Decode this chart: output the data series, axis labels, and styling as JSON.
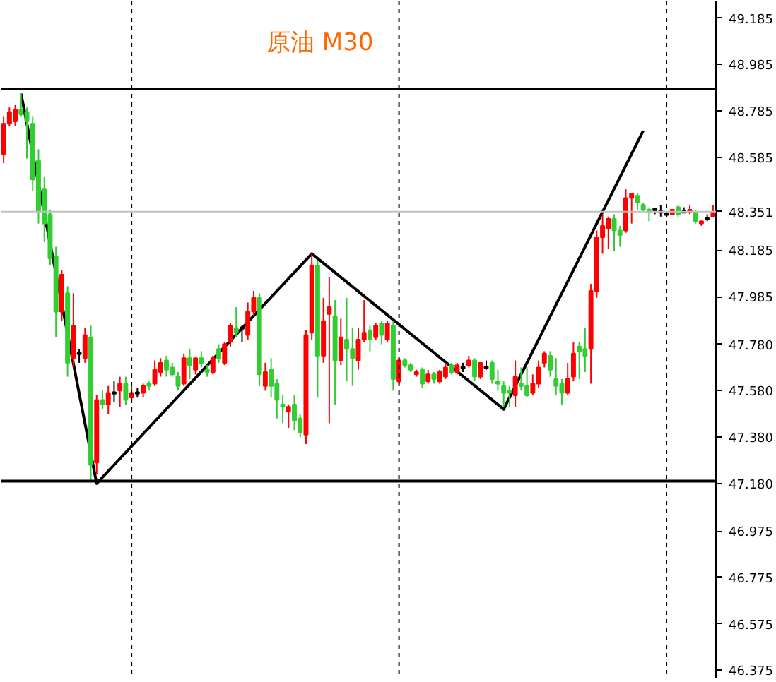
{
  "chart_data": {
    "type": "candlestick",
    "title": "原油 M30",
    "categories": [
      null,
      null,
      null,
      null,
      null,
      null,
      null,
      null,
      null,
      null,
      null,
      null,
      null,
      null,
      null,
      null,
      null,
      null,
      null,
      null,
      null,
      null,
      null,
      null,
      null,
      null,
      null,
      null,
      null,
      null,
      null,
      null,
      null,
      null,
      null,
      null,
      null,
      null,
      null,
      null,
      null,
      null,
      null,
      null,
      null,
      null,
      null,
      null,
      null,
      null,
      null,
      null,
      null,
      null,
      null,
      null,
      null,
      null,
      null,
      null,
      null,
      null,
      null,
      null,
      null,
      null,
      null,
      null,
      null,
      null,
      null,
      null,
      null,
      null,
      null,
      null,
      null,
      null,
      null,
      null,
      null,
      null,
      null,
      null,
      null,
      null,
      null,
      null,
      null,
      null,
      null,
      null,
      null,
      null,
      null,
      null,
      null,
      null,
      null,
      null,
      null,
      null,
      null,
      null,
      null,
      null,
      null,
      null,
      null,
      null,
      null,
      null,
      null,
      null,
      null,
      null,
      null,
      null,
      null,
      null,
      null,
      null,
      null
    ],
    "ohlc": [
      [
        48.6,
        48.76,
        48.56,
        48.73
      ],
      [
        48.73,
        48.8,
        48.72,
        48.78
      ],
      [
        48.74,
        48.81,
        48.72,
        48.79
      ],
      [
        48.79,
        48.86,
        48.76,
        48.77
      ],
      [
        48.78,
        48.8,
        48.58,
        48.74
      ],
      [
        48.73,
        48.76,
        48.44,
        48.49
      ],
      [
        48.57,
        48.62,
        48.3,
        48.35
      ],
      [
        48.45,
        48.5,
        48.22,
        48.3
      ],
      [
        48.34,
        48.36,
        48.12,
        48.15
      ],
      [
        48.16,
        48.2,
        47.81,
        47.92
      ],
      [
        47.92,
        48.1,
        47.88,
        48.08
      ],
      [
        48.0,
        48.03,
        47.64,
        47.7
      ],
      [
        47.72,
        48.0,
        47.68,
        47.86
      ],
      [
        47.74,
        47.76,
        47.7,
        47.74
      ],
      [
        47.72,
        47.85,
        47.7,
        47.82
      ],
      [
        47.81,
        47.86,
        47.19,
        47.26
      ],
      [
        47.27,
        47.56,
        47.22,
        47.54
      ],
      [
        47.54,
        47.58,
        47.5,
        47.52
      ],
      [
        47.52,
        47.6,
        47.48,
        47.57
      ],
      [
        47.57,
        47.62,
        47.53,
        47.57
      ],
      [
        47.58,
        47.64,
        47.51,
        47.61
      ],
      [
        47.61,
        47.64,
        47.52,
        47.54
      ],
      [
        47.55,
        47.6,
        47.54,
        47.57
      ],
      [
        47.57,
        47.59,
        47.55,
        47.57
      ],
      [
        47.57,
        47.61,
        47.55,
        47.6
      ],
      [
        47.61,
        47.62,
        47.58,
        47.6
      ],
      [
        47.61,
        47.71,
        47.6,
        47.67
      ],
      [
        47.66,
        47.72,
        47.64,
        47.7
      ],
      [
        47.71,
        47.73,
        47.64,
        47.67
      ],
      [
        47.68,
        47.7,
        47.64,
        47.65
      ],
      [
        47.64,
        47.66,
        47.58,
        47.6
      ],
      [
        47.61,
        47.74,
        47.6,
        47.72
      ],
      [
        47.72,
        47.76,
        47.63,
        47.69
      ],
      [
        47.67,
        47.72,
        47.65,
        47.72
      ],
      [
        47.72,
        47.75,
        47.68,
        47.7
      ],
      [
        47.67,
        47.69,
        47.64,
        47.66
      ],
      [
        47.66,
        47.73,
        47.65,
        47.72
      ],
      [
        47.76,
        47.78,
        47.7,
        47.72
      ],
      [
        47.7,
        47.79,
        47.69,
        47.78
      ],
      [
        47.79,
        47.87,
        47.77,
        47.86
      ],
      [
        47.85,
        47.94,
        47.81,
        47.83
      ],
      [
        47.85,
        47.86,
        47.79,
        47.85
      ],
      [
        47.82,
        47.96,
        47.8,
        47.92
      ],
      [
        47.92,
        48.01,
        47.9,
        47.98
      ],
      [
        47.98,
        48.0,
        47.6,
        47.65
      ],
      [
        47.6,
        47.7,
        47.58,
        47.66
      ],
      [
        47.67,
        47.72,
        47.55,
        47.6
      ],
      [
        47.61,
        47.63,
        47.46,
        47.54
      ],
      [
        47.52,
        47.56,
        47.44,
        47.51
      ],
      [
        47.49,
        47.52,
        47.42,
        47.51
      ],
      [
        47.52,
        47.56,
        47.41,
        47.45
      ],
      [
        47.46,
        47.48,
        47.38,
        47.4
      ],
      [
        47.39,
        47.84,
        47.35,
        47.82
      ],
      [
        47.83,
        48.17,
        47.8,
        48.12
      ],
      [
        48.12,
        48.14,
        47.55,
        47.73
      ],
      [
        47.73,
        47.98,
        47.7,
        47.88
      ],
      [
        47.91,
        48.07,
        47.44,
        47.94
      ],
      [
        47.9,
        47.97,
        47.52,
        47.71
      ],
      [
        47.71,
        47.89,
        47.69,
        47.81
      ],
      [
        47.8,
        47.98,
        47.62,
        47.76
      ],
      [
        47.76,
        47.85,
        47.6,
        47.72
      ],
      [
        47.71,
        47.85,
        47.67,
        47.8
      ],
      [
        47.8,
        47.97,
        47.79,
        47.83
      ],
      [
        47.84,
        47.86,
        47.75,
        47.8
      ],
      [
        47.81,
        47.87,
        47.8,
        47.86
      ],
      [
        47.87,
        47.88,
        47.78,
        47.82
      ],
      [
        47.8,
        47.88,
        47.79,
        47.87
      ],
      [
        47.86,
        47.88,
        47.58,
        47.63
      ],
      [
        47.62,
        47.72,
        47.61,
        47.71
      ],
      [
        47.71,
        47.72,
        47.68,
        47.69
      ],
      [
        47.69,
        47.7,
        47.66,
        47.67
      ],
      [
        47.65,
        47.67,
        47.64,
        47.66
      ],
      [
        47.67,
        47.68,
        47.59,
        47.61
      ],
      [
        47.62,
        47.67,
        47.61,
        47.65
      ],
      [
        47.65,
        47.66,
        47.61,
        47.63
      ],
      [
        47.62,
        47.67,
        47.61,
        47.66
      ],
      [
        47.64,
        47.7,
        47.63,
        47.68
      ],
      [
        47.69,
        47.7,
        47.65,
        47.66
      ],
      [
        47.66,
        47.7,
        47.65,
        47.69
      ],
      [
        47.68,
        47.7,
        47.66,
        47.68
      ],
      [
        47.69,
        47.73,
        47.68,
        47.71
      ],
      [
        47.71,
        47.72,
        47.62,
        47.64
      ],
      [
        47.64,
        47.7,
        47.63,
        47.7
      ],
      [
        47.68,
        47.71,
        47.67,
        47.68
      ],
      [
        47.7,
        47.71,
        47.61,
        47.63
      ],
      [
        47.62,
        47.67,
        47.58,
        47.61
      ],
      [
        47.6,
        47.62,
        47.51,
        47.57
      ],
      [
        47.58,
        47.6,
        47.51,
        47.57
      ],
      [
        47.56,
        47.71,
        47.51,
        47.64
      ],
      [
        47.61,
        47.68,
        47.58,
        47.6
      ],
      [
        47.6,
        47.68,
        47.55,
        47.56
      ],
      [
        47.57,
        47.65,
        47.56,
        47.61
      ],
      [
        47.61,
        47.71,
        47.59,
        47.68
      ],
      [
        47.7,
        47.75,
        47.68,
        47.74
      ],
      [
        47.73,
        47.75,
        47.64,
        47.67
      ],
      [
        47.63,
        47.72,
        47.56,
        47.6
      ],
      [
        47.61,
        47.63,
        47.52,
        47.57
      ],
      [
        47.57,
        47.7,
        47.56,
        47.63
      ],
      [
        47.64,
        47.79,
        47.62,
        47.74
      ],
      [
        47.77,
        47.79,
        47.63,
        47.75
      ],
      [
        47.76,
        47.85,
        47.66,
        47.73
      ],
      [
        47.76,
        48.04,
        47.61,
        48.01
      ],
      [
        48.01,
        48.27,
        47.98,
        48.24
      ],
      [
        48.24,
        48.34,
        48.17,
        48.29
      ],
      [
        48.28,
        48.33,
        48.19,
        48.32
      ],
      [
        48.32,
        48.34,
        48.18,
        48.27
      ],
      [
        48.27,
        48.29,
        48.2,
        48.25
      ],
      [
        48.27,
        48.45,
        48.26,
        48.41
      ],
      [
        48.41,
        48.43,
        48.3,
        48.43
      ],
      [
        48.42,
        48.43,
        48.36,
        48.39
      ],
      [
        48.38,
        48.39,
        48.35,
        48.36
      ],
      [
        48.36,
        48.37,
        48.31,
        48.35
      ],
      [
        48.36,
        48.36,
        48.34,
        48.36
      ],
      [
        48.35,
        48.38,
        48.33,
        48.35
      ],
      [
        48.34,
        48.35,
        48.33,
        48.34
      ],
      [
        48.34,
        48.36,
        48.34,
        48.36
      ],
      [
        48.37,
        48.38,
        48.33,
        48.34
      ],
      [
        48.35,
        48.37,
        48.35,
        48.35
      ],
      [
        48.35,
        48.38,
        48.34,
        48.36
      ],
      [
        48.35,
        48.36,
        48.3,
        48.31
      ],
      [
        48.3,
        48.31,
        48.29,
        48.31
      ],
      [
        48.32,
        48.34,
        48.31,
        48.32
      ],
      [
        48.33,
        48.38,
        48.33,
        48.35
      ]
    ],
    "colors": [
      "#ff0000",
      "#ff0000",
      "#ff0000",
      "#32cd32",
      "#32cd32",
      "#32cd32",
      "#32cd32",
      "#32cd32",
      "#32cd32",
      "#32cd32",
      "#ff0000",
      "#32cd32",
      "#ff0000",
      "#000000",
      "#ff0000",
      "#32cd32",
      "#ff0000",
      "#32cd32",
      "#ff0000",
      "#000000",
      "#ff0000",
      "#32cd32",
      "#ff0000",
      "#000000",
      "#ff0000",
      "#32cd32",
      "#ff0000",
      "#ff0000",
      "#32cd32",
      "#32cd32",
      "#32cd32",
      "#ff0000",
      "#32cd32",
      "#ff0000",
      "#32cd32",
      "#32cd32",
      "#ff0000",
      "#32cd32",
      "#ff0000",
      "#ff0000",
      "#32cd32",
      "#000000",
      "#ff0000",
      "#ff0000",
      "#32cd32",
      "#ff0000",
      "#32cd32",
      "#32cd32",
      "#32cd32",
      "#ff0000",
      "#32cd32",
      "#32cd32",
      "#ff0000",
      "#ff0000",
      "#32cd32",
      "#ff0000",
      "#ff0000",
      "#32cd32",
      "#ff0000",
      "#32cd32",
      "#32cd32",
      "#ff0000",
      "#ff0000",
      "#32cd32",
      "#ff0000",
      "#32cd32",
      "#ff0000",
      "#32cd32",
      "#ff0000",
      "#32cd32",
      "#32cd32",
      "#ff0000",
      "#32cd32",
      "#ff0000",
      "#32cd32",
      "#ff0000",
      "#ff0000",
      "#32cd32",
      "#ff0000",
      "#000000",
      "#ff0000",
      "#32cd32",
      "#ff0000",
      "#000000",
      "#32cd32",
      "#32cd32",
      "#32cd32",
      "#32cd32",
      "#ff0000",
      "#32cd32",
      "#32cd32",
      "#ff0000",
      "#ff0000",
      "#ff0000",
      "#32cd32",
      "#32cd32",
      "#32cd32",
      "#ff0000",
      "#ff0000",
      "#32cd32",
      "#32cd32",
      "#ff0000",
      "#ff0000",
      "#ff0000",
      "#ff0000",
      "#32cd32",
      "#32cd32",
      "#ff0000",
      "#ff0000",
      "#32cd32",
      "#32cd32",
      "#32cd32",
      "#000000",
      "#000000",
      "#000000",
      "#ff0000",
      "#32cd32",
      "#000000",
      "#ff0000",
      "#32cd32",
      "#ff0000",
      "#000000",
      "#ff0000"
    ],
    "series": [
      {
        "type": "line",
        "color": "#000000",
        "values": [
          null,
          null,
          null,
          48.86,
          null,
          null,
          null,
          null,
          null,
          null,
          null,
          null,
          null,
          null,
          null,
          null,
          47.18,
          null,
          null,
          null,
          null,
          null,
          null,
          null,
          null,
          null,
          null,
          null,
          null,
          null,
          null,
          null,
          null,
          null,
          null,
          null,
          null,
          null,
          null,
          null,
          null,
          null,
          null,
          null,
          null,
          null,
          null,
          null,
          null,
          null,
          null,
          null,
          null,
          48.17,
          null,
          null,
          null,
          null,
          null,
          null,
          null,
          null,
          null,
          null,
          null,
          null,
          null,
          null,
          null,
          null,
          null,
          null,
          null,
          null,
          null,
          null,
          null,
          null,
          null,
          null,
          null,
          null,
          null,
          null,
          null,
          null,
          47.5,
          null,
          null,
          null,
          null,
          null,
          null,
          null,
          null,
          null,
          null,
          null,
          null,
          null,
          null,
          null,
          null,
          null,
          null,
          null,
          null,
          null,
          null,
          null,
          48.7,
          null,
          null,
          null,
          null,
          null,
          null,
          null,
          null,
          null,
          null,
          null,
          null
        ]
      }
    ],
    "ylim": [
      46.34,
      49.26
    ],
    "yticks": [
      49.185,
      48.985,
      48.785,
      48.585,
      48.185,
      47.985,
      {
        "value": 47.78,
        "label": "47.780"
      },
      {
        "value": 47.58,
        "label": "47.580"
      },
      {
        "value": 47.38,
        "label": "47.380"
      },
      {
        "value": 47.18,
        "label": "47.180"
      },
      46.975,
      46.775,
      46.575,
      46.375
    ],
    "ref_lines": [
      {
        "axis": "y",
        "value": 48.88,
        "color": "#000000"
      },
      {
        "axis": "y",
        "value": 47.19,
        "color": "#000000"
      },
      {
        "axis": "y",
        "value": 48.351,
        "label": "48.351",
        "color": "#c0c0c0"
      }
    ],
    "grid": "x",
    "tick_labels": "y"
  }
}
